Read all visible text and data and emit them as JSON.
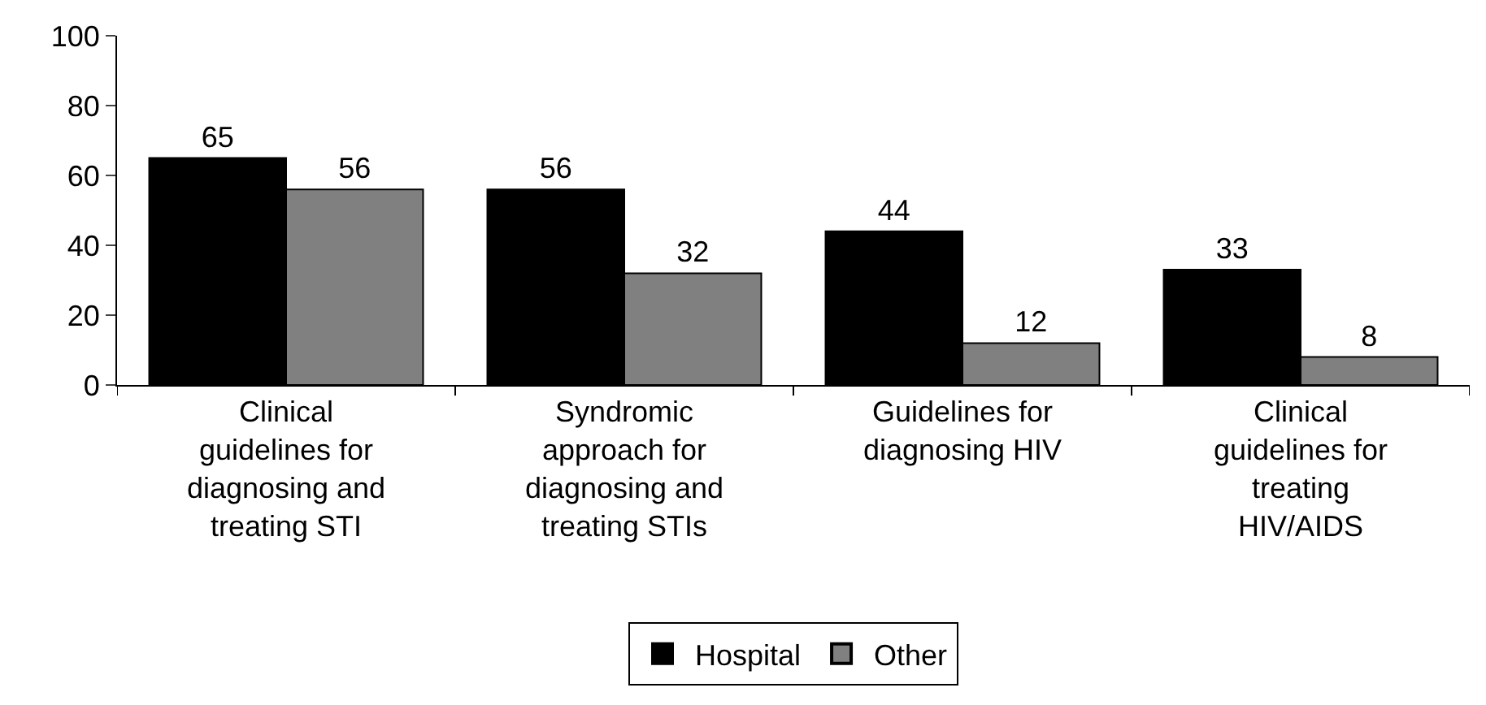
{
  "chart_data": {
    "type": "bar",
    "categories": [
      "Clinical guidelines for diagnosing and treating STI",
      "Syndromic approach for diagnosing and treating STIs",
      "Guidelines for diagnosing HIV",
      "Clinical guidelines for treating HIV/AIDS"
    ],
    "series": [
      {
        "name": "Hospital",
        "color": "#000000",
        "values": [
          65,
          56,
          44,
          33
        ]
      },
      {
        "name": "Other",
        "color": "#808080",
        "values": [
          56,
          32,
          12,
          8
        ]
      }
    ],
    "ylim": [
      0,
      100
    ],
    "yticks": [
      0,
      20,
      40,
      60,
      80,
      100
    ],
    "data_labels": true,
    "legend": "bottom"
  }
}
